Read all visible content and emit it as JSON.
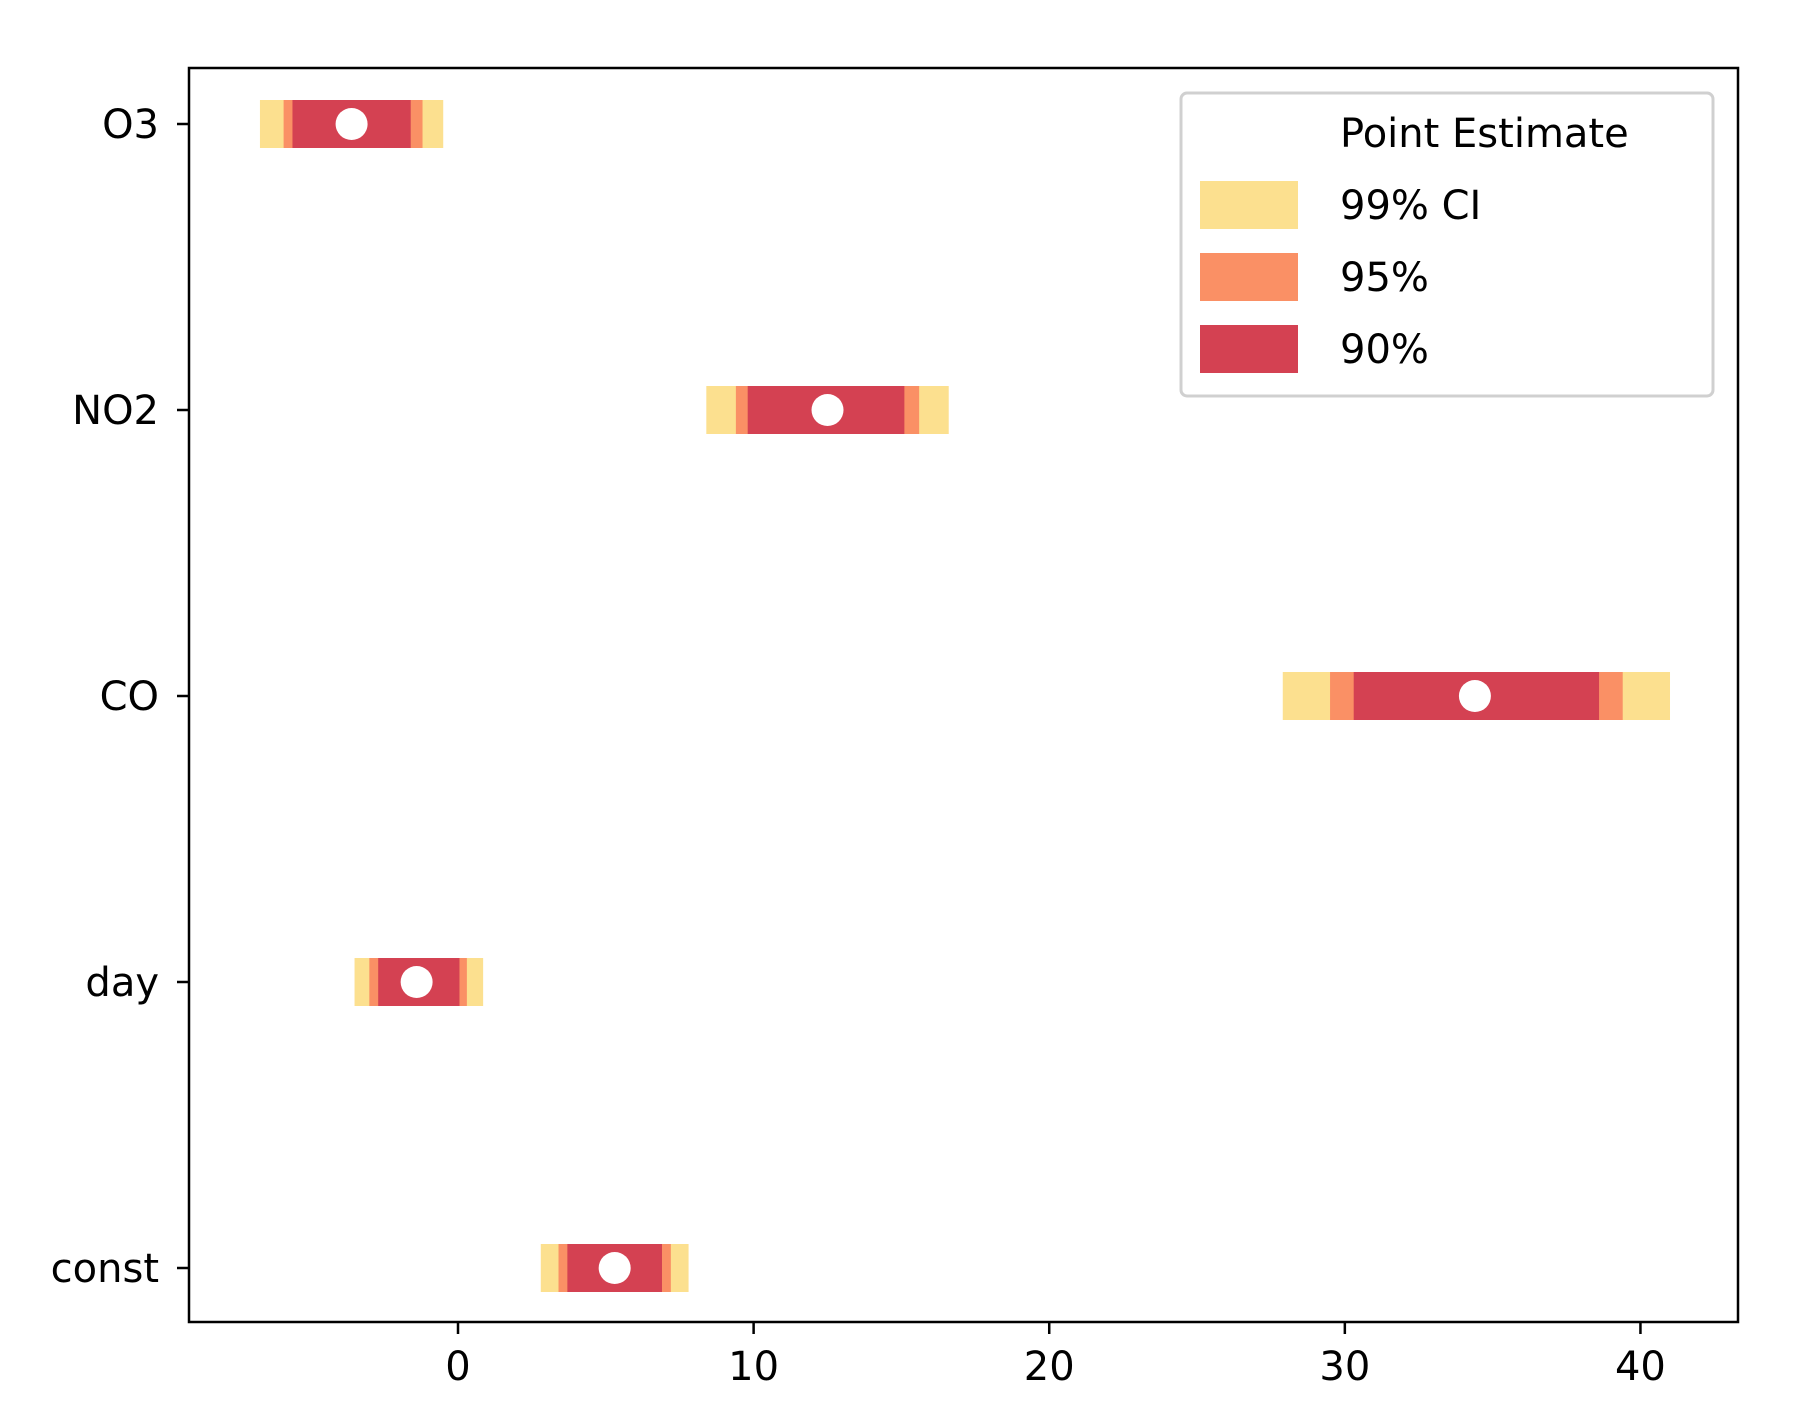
{
  "chart_data": {
    "type": "interval",
    "title": "",
    "xlabel": "",
    "ylabel": "",
    "categories": [
      "O3",
      "NO2",
      "CO",
      "day",
      "const"
    ],
    "xlim": [
      -9.1,
      43.3
    ],
    "xticks": [
      0,
      10,
      20,
      30,
      40
    ],
    "grid": false,
    "legend_position": "upper right",
    "colors": {
      "ci99": "#fce08f",
      "ci95": "#fa9065",
      "ci90": "#d44152",
      "point": "#ffffff"
    },
    "series": [
      {
        "category": "O3",
        "estimate": -3.6,
        "ci99": [
          -6.7,
          -0.5
        ],
        "ci95": [
          -5.9,
          -1.2
        ],
        "ci90": [
          -5.6,
          -1.6
        ]
      },
      {
        "category": "NO2",
        "estimate": 12.5,
        "ci99": [
          8.4,
          16.6
        ],
        "ci95": [
          9.4,
          15.6
        ],
        "ci90": [
          9.8,
          15.1
        ]
      },
      {
        "category": "CO",
        "estimate": 34.4,
        "ci99": [
          27.9,
          41.0
        ],
        "ci95": [
          29.5,
          39.4
        ],
        "ci90": [
          30.3,
          38.6
        ]
      },
      {
        "category": "day",
        "estimate": -1.4,
        "ci99": [
          -3.5,
          0.85
        ],
        "ci95": [
          -3.0,
          0.3
        ],
        "ci90": [
          -2.7,
          0.05
        ]
      },
      {
        "category": "const",
        "estimate": 5.3,
        "ci99": [
          2.8,
          7.8
        ],
        "ci95": [
          3.4,
          7.2
        ],
        "ci90": [
          3.7,
          6.9
        ]
      }
    ],
    "legend": [
      {
        "label": "Point Estimate",
        "key": "point"
      },
      {
        "label": "99% CI",
        "key": "ci99"
      },
      {
        "label": "95%",
        "key": "ci95"
      },
      {
        "label": "90%",
        "key": "ci90"
      }
    ]
  }
}
